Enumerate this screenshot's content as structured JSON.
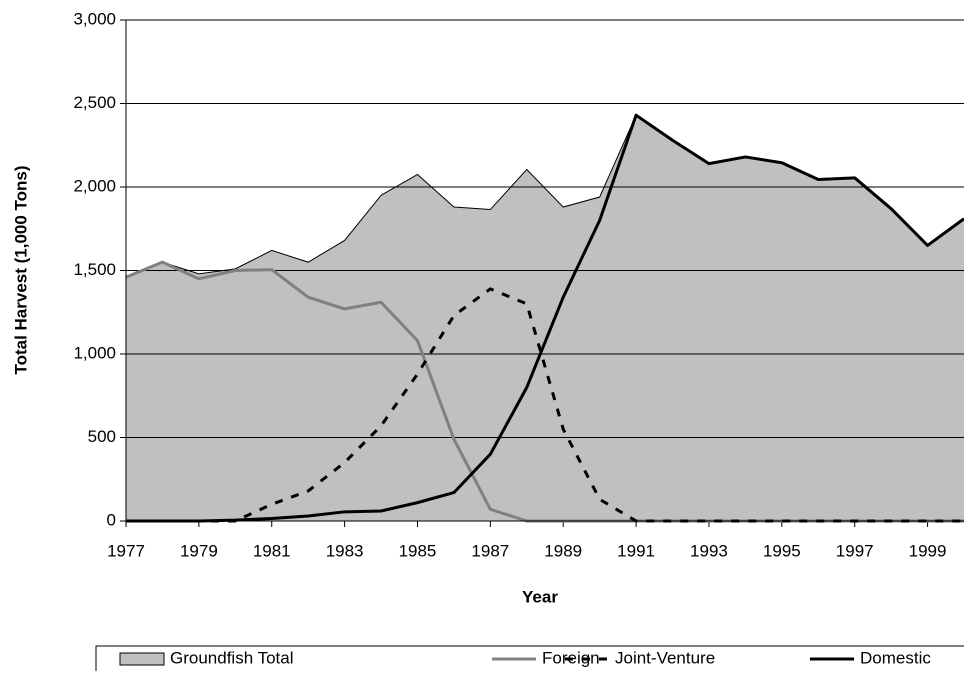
{
  "chart_data": {
    "type": "line",
    "x_label": "Year",
    "y_label": "Total Harvest (1,000 Tons)",
    "x": [
      1977,
      1978,
      1979,
      1980,
      1981,
      1982,
      1983,
      1984,
      1985,
      1986,
      1987,
      1988,
      1989,
      1990,
      1991,
      1992,
      1993,
      1994,
      1995,
      1996,
      1997,
      1998,
      1999,
      2000
    ],
    "xlim": [
      1977,
      2000
    ],
    "xticks": [
      1977,
      1979,
      1981,
      1983,
      1985,
      1987,
      1989,
      1991,
      1993,
      1995,
      1997,
      1999
    ],
    "ylim": [
      0,
      3000
    ],
    "yticks": [
      0,
      500,
      {
        "value": 1000,
        "label": "1,000"
      },
      {
        "value": 1500,
        "label": "1,500"
      },
      {
        "value": 2000,
        "label": "2,000"
      },
      {
        "value": 2500,
        "label": "2,500"
      },
      {
        "value": 3000,
        "label": "3,000"
      }
    ],
    "grid": true,
    "legend": "bottom",
    "series": [
      {
        "name": "Groundfish Total",
        "type": "area",
        "color": "#c0c0c0",
        "values": [
          1460,
          1550,
          1480,
          1510,
          1620,
          1550,
          1680,
          1950,
          2075,
          1880,
          1865,
          2105,
          1880,
          1940,
          2430,
          2280,
          2140,
          2180,
          2145,
          2045,
          2055,
          1870,
          1650,
          1810
        ]
      },
      {
        "name": "Foreign",
        "type": "line",
        "color": "#808080",
        "dash": "solid",
        "values": [
          1460,
          1550,
          1450,
          1500,
          1505,
          1340,
          1270,
          1310,
          1080,
          490,
          70,
          0,
          0,
          0,
          0,
          0,
          0,
          0,
          0,
          0,
          0,
          0,
          0,
          0
        ]
      },
      {
        "name": "Joint-Venture",
        "type": "line",
        "color": "#000000",
        "dash": "dashed",
        "values": [
          0,
          0,
          0,
          0,
          100,
          180,
          350,
          570,
          880,
          1230,
          1390,
          1300,
          550,
          130,
          0,
          0,
          0,
          0,
          0,
          0,
          0,
          0,
          0,
          0
        ]
      },
      {
        "name": "Domestic",
        "type": "line",
        "color": "#000000",
        "dash": "solid",
        "values": [
          0,
          0,
          0,
          5,
          15,
          30,
          55,
          60,
          110,
          170,
          400,
          800,
          1340,
          1800,
          2430,
          2280,
          2140,
          2180,
          2145,
          2045,
          2055,
          1870,
          1650,
          1810
        ]
      }
    ]
  }
}
